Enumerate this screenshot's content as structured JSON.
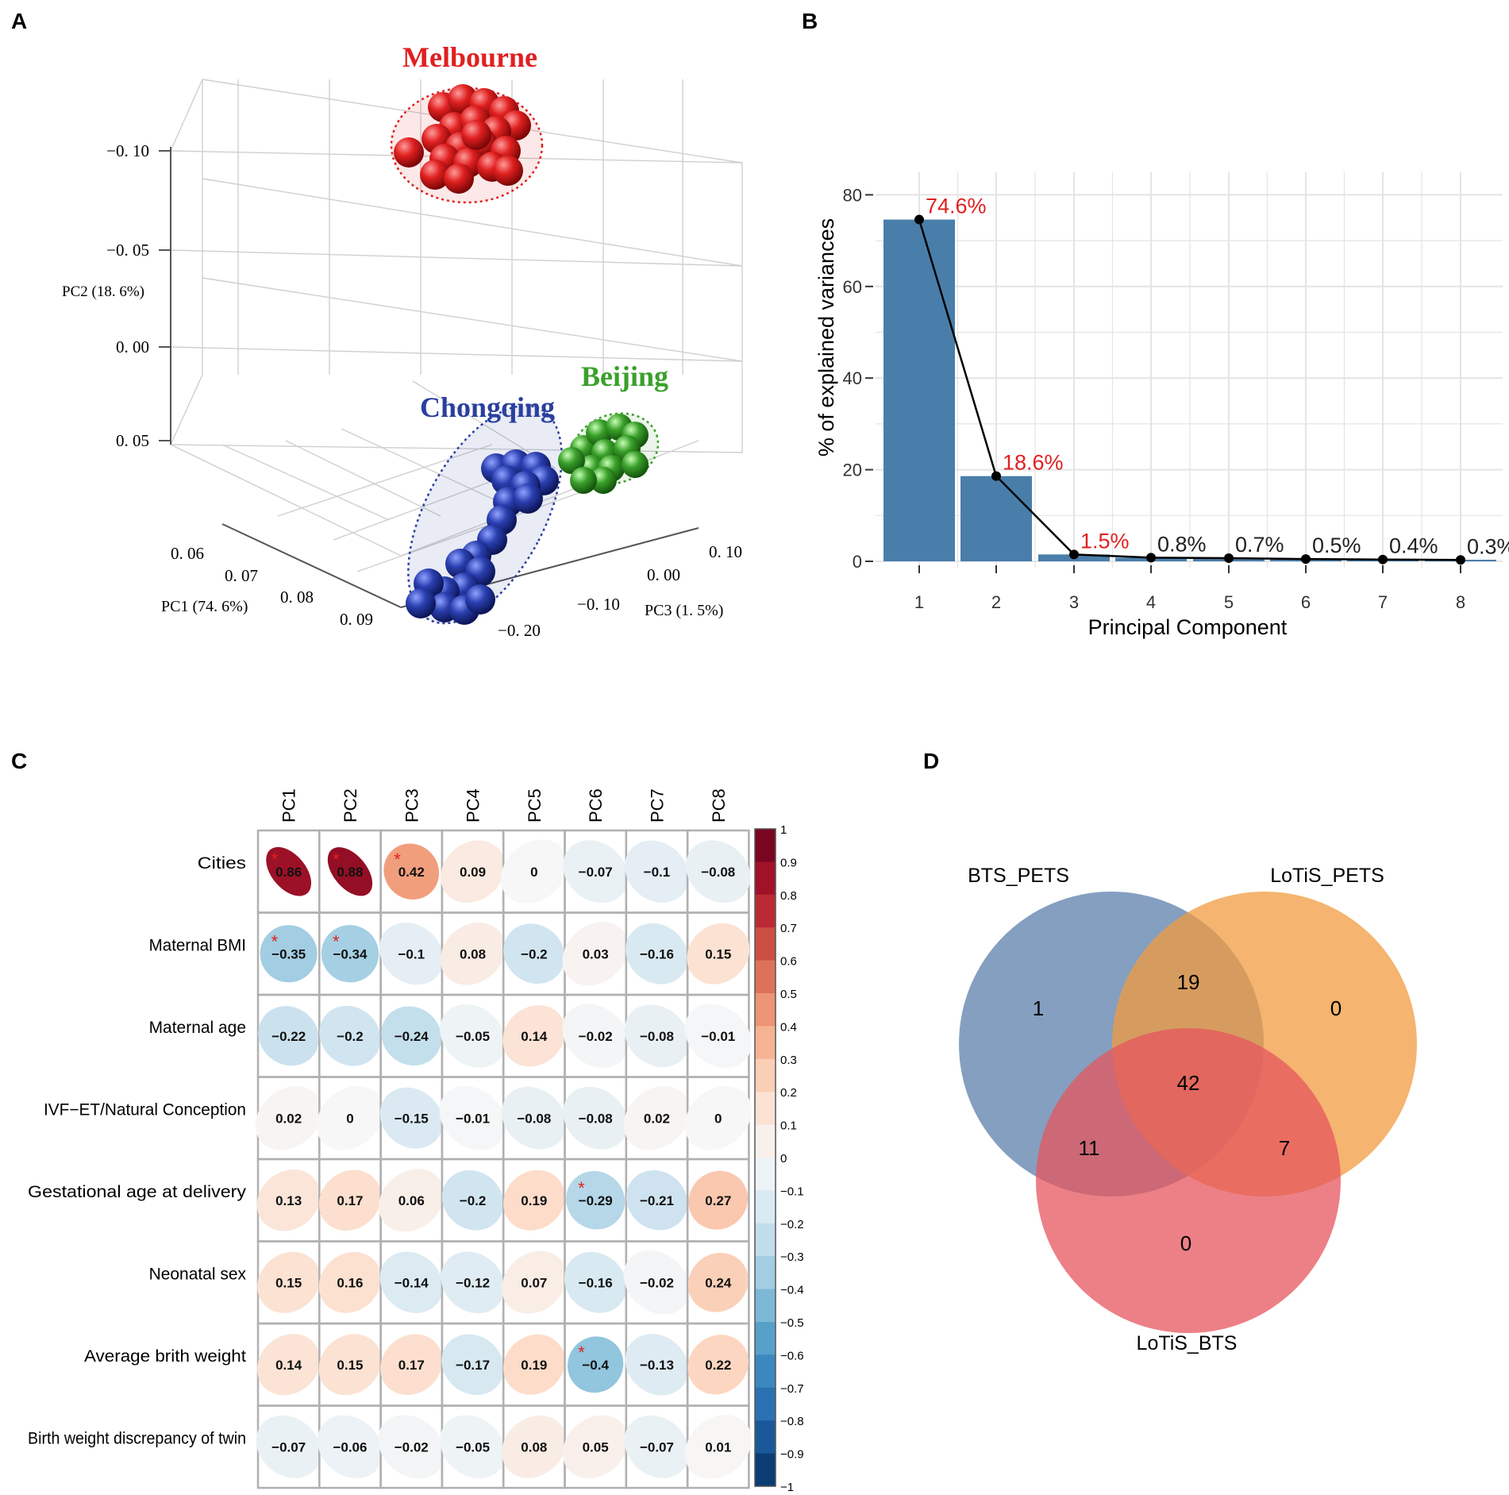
{
  "panel_labels": [
    "A",
    "B",
    "C",
    "D"
  ],
  "chart_data": [
    {
      "type": "scatter",
      "panel": "A",
      "title": "",
      "axes": {
        "pc1": {
          "label": "PC1 (74. 6%)",
          "ticks": [
            "0. 06",
            "0. 07",
            "0. 08",
            "0. 09"
          ]
        },
        "pc2": {
          "label": "PC2 (18. 6%)",
          "ticks": [
            "−0. 10",
            "−0. 05",
            "0. 00",
            "0. 05"
          ]
        },
        "pc3": {
          "label": "PC3 (1. 5%)",
          "ticks": [
            "0. 10",
            "0. 00",
            "−0. 10",
            "−0. 20"
          ]
        }
      },
      "groups": [
        {
          "name": "Melbourne",
          "color": "#e02020",
          "count": 20
        },
        {
          "name": "Chongqing",
          "color": "#2a3f9e",
          "count": 18
        },
        {
          "name": "Beijing",
          "color": "#3aa02a",
          "count": 12
        }
      ]
    },
    {
      "type": "bar",
      "panel": "B",
      "categories": [
        "1",
        "2",
        "3",
        "4",
        "5",
        "6",
        "7",
        "8"
      ],
      "values": [
        74.6,
        18.6,
        1.5,
        0.8,
        0.7,
        0.5,
        0.4,
        0.3
      ],
      "bar_labels": [
        "74.6%",
        "18.6%",
        "1.5%",
        "0.8%",
        "0.7%",
        "0.5%",
        "0.4%",
        "0.3%"
      ],
      "xlabel": "Principal Component",
      "ylabel": "% of explained variances",
      "ylim": [
        0,
        85
      ],
      "yticks": [
        0,
        20,
        40,
        60,
        80
      ],
      "grid": true,
      "bar_color": "#4a7eaa",
      "line_color": "#000000",
      "highlight_color": "#e02020"
    },
    {
      "type": "heatmap",
      "panel": "C",
      "columns": [
        "PC1",
        "PC2",
        "PC3",
        "PC4",
        "PC5",
        "PC6",
        "PC7",
        "PC8"
      ],
      "rows": [
        "Cities",
        "Maternal BMI",
        "Maternal age",
        "IVF−ET/Natural Conception",
        "Gestational age at delivery",
        "Neonatal sex",
        "Average brith weight",
        "Birth weight discrepancy of twin"
      ],
      "values": [
        [
          0.86,
          0.88,
          0.42,
          0.09,
          0,
          -0.07,
          -0.1,
          -0.08
        ],
        [
          -0.35,
          -0.34,
          -0.1,
          0.08,
          -0.2,
          0.03,
          -0.16,
          0.15
        ],
        [
          -0.22,
          -0.2,
          -0.24,
          -0.05,
          0.14,
          -0.02,
          -0.08,
          -0.01
        ],
        [
          0.02,
          0,
          -0.15,
          -0.01,
          -0.08,
          -0.08,
          0.02,
          0
        ],
        [
          0.13,
          0.17,
          0.06,
          -0.2,
          0.19,
          -0.29,
          -0.21,
          0.27
        ],
        [
          0.15,
          0.16,
          -0.14,
          -0.12,
          0.07,
          -0.16,
          -0.02,
          0.24
        ],
        [
          0.14,
          0.15,
          0.17,
          -0.17,
          0.19,
          -0.4,
          -0.13,
          0.22
        ],
        [
          -0.07,
          -0.06,
          -0.02,
          -0.05,
          0.08,
          0.05,
          -0.07,
          0.01
        ]
      ],
      "significant": [
        [
          0,
          0
        ],
        [
          0,
          1
        ],
        [
          0,
          2
        ],
        [
          1,
          0
        ],
        [
          1,
          1
        ],
        [
          4,
          5
        ],
        [
          6,
          5
        ]
      ],
      "significance_mark": "*",
      "colorbar_ticks": [
        "1",
        "0.9",
        "0.8",
        "0.7",
        "0.6",
        "0.5",
        "0.4",
        "0.3",
        "0.2",
        "0.1",
        "0",
        "−0.1",
        "−0.2",
        "−0.3",
        "−0.4",
        "−0.5",
        "−0.6",
        "−0.7",
        "−0.8",
        "−0.9",
        "−1"
      ],
      "range": [
        -1,
        1
      ]
    },
    {
      "type": "venn",
      "panel": "D",
      "sets": [
        {
          "name": "BTS_PETS",
          "color": "#5b7fab"
        },
        {
          "name": "LoTiS_PETS",
          "color": "#f29b3f"
        },
        {
          "name": "LoTiS_BTS",
          "color": "#e5565d"
        }
      ],
      "regions": {
        "BTS_PETS_only": "1",
        "LoTiS_PETS_only": "0",
        "LoTiS_BTS_only": "0",
        "BTS_PETS__LoTiS_PETS": "19",
        "BTS_PETS__LoTiS_BTS": "11",
        "LoTiS_PETS__LoTiS_BTS": "7",
        "all_three": "42"
      }
    }
  ]
}
